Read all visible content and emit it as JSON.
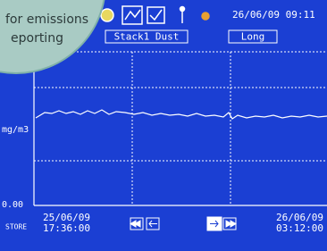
{
  "caption": {
    "line1": "for emissions",
    "line2": "eporting"
  },
  "header": {
    "datetime": "26/06/09  09:11",
    "channel": "Stack1 Dust",
    "period": "Long"
  },
  "axis": {
    "unit": "mg/m3",
    "zero": "0.00"
  },
  "footer": {
    "store": "STORE",
    "start_date": "25/06/09",
    "start_time": "17:36:00",
    "end_date": "26/06/09",
    "end_time": "03:12:00"
  }
}
